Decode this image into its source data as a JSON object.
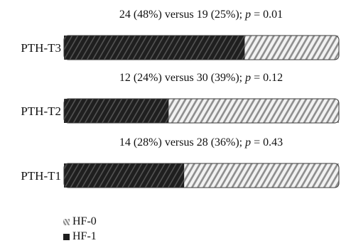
{
  "chart_data": {
    "type": "bar",
    "orientation": "horizontal",
    "stacked": true,
    "categories": [
      "PTH-T3",
      "PTH-T2",
      "PTH-T1"
    ],
    "series": [
      {
        "name": "HF-1",
        "values": [
          48,
          24,
          28
        ],
        "color": "#262626",
        "pattern": "dark-diagonal-stripes"
      },
      {
        "name": "HF-0",
        "values": [
          25,
          39,
          36
        ],
        "color": "#bdbdbd",
        "pattern": "light-diagonal-stripes"
      }
    ],
    "annotations": [
      "24 (48%) versus 19 (25%); p = 0.01",
      "12 (24%) versus 30 (39%); p = 0.12",
      "14 (28%) versus 28 (36%); p = 0.43"
    ],
    "legend": {
      "position": "bottom-left",
      "entries": [
        "HF-0",
        "HF-1"
      ]
    },
    "grid": false
  }
}
